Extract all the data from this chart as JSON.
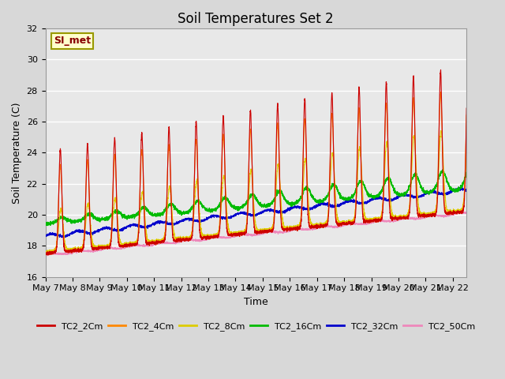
{
  "title": "Soil Temperatures Set 2",
  "xlabel": "Time",
  "ylabel": "Soil Temperature (C)",
  "ylim": [
    16,
    32
  ],
  "xtick_labels": [
    "May 7",
    "May 8",
    "May 9",
    "May 10",
    "May 11",
    "May 12",
    "May 13",
    "May 14",
    "May 15",
    "May 16",
    "May 17",
    "May 18",
    "May 19",
    "May 20",
    "May 21",
    "May 22"
  ],
  "series_colors": {
    "TC2_2Cm": "#cc0000",
    "TC2_4Cm": "#ff8800",
    "TC2_8Cm": "#ddcc00",
    "TC2_16Cm": "#00bb00",
    "TC2_32Cm": "#0000cc",
    "TC2_50Cm": "#ee88bb"
  },
  "bg_color": "#e8e8e8",
  "legend_box_facecolor": "#ffffcc",
  "legend_box_edgecolor": "#999900",
  "legend_text": "SI_met",
  "legend_text_color": "#880000",
  "grid_color": "#ffffff",
  "title_fontsize": 12,
  "label_fontsize": 9,
  "tick_fontsize": 8,
  "figsize": [
    6.4,
    4.8
  ],
  "dpi": 100
}
